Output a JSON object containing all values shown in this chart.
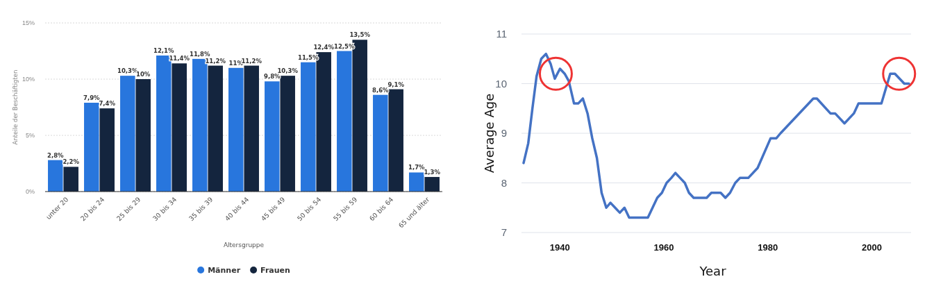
{
  "chart_data": [
    {
      "type": "bar",
      "xlabel": "Altersgruppe",
      "ylabel": "Anteile der Beschäftigten",
      "categories": [
        "unter 20",
        "20 bis 24",
        "25 bis 29",
        "30 bis 34",
        "35 bis 39",
        "40 bis 44",
        "45 bis 49",
        "50 bis 54",
        "55 bis 59",
        "60 bis 64",
        "65 und älter"
      ],
      "series": [
        {
          "name": "Männer",
          "color": "#2876dd",
          "values": [
            2.8,
            7.9,
            10.3,
            12.1,
            11.8,
            11,
            9.8,
            11.5,
            12.5,
            8.6,
            1.7
          ],
          "value_labels": [
            "2,8%",
            "7,9%",
            "10,3%",
            "12,1%",
            "11,8%",
            "11%",
            "9,8%",
            "11,5%",
            "12,5%",
            "8,6%",
            "1,7%"
          ]
        },
        {
          "name": "Frauen",
          "color": "#14253e",
          "values": [
            2.2,
            7.4,
            10,
            11.4,
            11.2,
            11.2,
            10.3,
            12.4,
            13.5,
            9.1,
            1.3
          ],
          "value_labels": [
            "2,2%",
            "7,4%",
            "10%",
            "11,4%",
            "11,2%",
            "11,2%",
            "10,3%",
            "12,4%",
            "13,5%",
            "9,1%",
            "1,3%"
          ]
        }
      ],
      "ylim": [
        0,
        15
      ],
      "yticks": [
        {
          "value": 0,
          "label": "0%"
        },
        {
          "value": 5,
          "label": "5%"
        },
        {
          "value": 10,
          "label": "10%"
        },
        {
          "value": 15,
          "label": "15%"
        }
      ],
      "grid": "y",
      "legend": "bottom"
    },
    {
      "type": "line",
      "xlabel": "Year",
      "ylabel": "Average Age",
      "series": [
        {
          "color": "#4472c4",
          "x": [
            1933.1,
            1934.0,
            1934.8,
            1935.6,
            1936.5,
            1937.4,
            1938.3,
            1939.1,
            1940.1,
            1941.0,
            1941.8,
            1942.8,
            1943.6,
            1944.5,
            1945.4,
            1946.3,
            1947.2,
            1948.1,
            1949.0,
            1949.8,
            1950.7,
            1951.6,
            1952.5,
            1953.4,
            1957.0,
            1957.9,
            1958.8,
            1959.7,
            1960.6,
            1961.5,
            1962.3,
            1963.2,
            1964.1,
            1964.9,
            1965.8,
            1968.3,
            1969.2,
            1971.0,
            1971.9,
            1972.8,
            1973.8,
            1974.7,
            1976.3,
            1978.1,
            1980.6,
            1981.7,
            1982.5,
            1984.3,
            1988.8,
            1989.5,
            1992.1,
            1993.0,
            1994.8,
            1996.6,
            1997.5,
            2001.9,
            2003.6,
            2004.5,
            2006.3,
            2007.2
          ],
          "values": [
            8.4,
            8.8,
            9.5,
            10.15,
            10.5,
            10.6,
            10.4,
            10.1,
            10.3,
            10.2,
            10.05,
            9.6,
            9.6,
            9.7,
            9.4,
            8.9,
            8.5,
            7.8,
            7.5,
            7.6,
            7.5,
            7.4,
            7.5,
            7.3,
            7.3,
            7.5,
            7.7,
            7.8,
            8.0,
            8.1,
            8.2,
            8.1,
            8.0,
            7.8,
            7.7,
            7.7,
            7.8,
            7.8,
            7.7,
            7.8,
            8.0,
            8.1,
            8.1,
            8.3,
            8.9,
            8.9,
            9.0,
            9.2,
            9.7,
            9.7,
            9.4,
            9.4,
            9.2,
            9.4,
            9.6,
            9.6,
            10.2,
            10.2,
            10.0,
            10.0
          ]
        }
      ],
      "xlim": [
        1932.7,
        2007.6
      ],
      "xticks": [
        1940,
        1960,
        1980,
        2000
      ],
      "ylim": [
        7,
        11
      ],
      "yticks": [
        7,
        8,
        9,
        10,
        11
      ],
      "grid": "y",
      "line_style": "solid",
      "marker": "none"
    }
  ]
}
